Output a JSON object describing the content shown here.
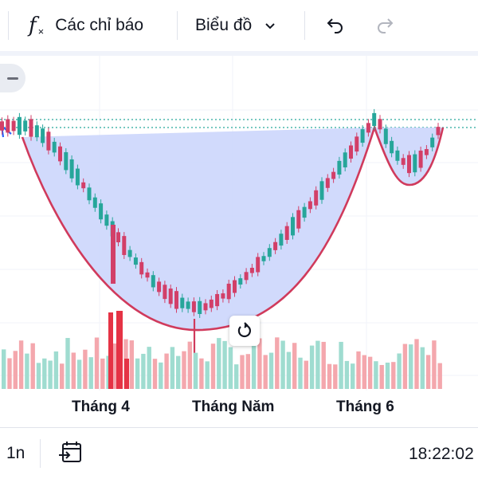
{
  "toolbar": {
    "indicators_label": "Các chỉ báo",
    "chart_type_label": "Biểu đồ",
    "icons": [
      "fx-icon",
      "chevron-down-icon",
      "undo-icon",
      "redo-icon"
    ]
  },
  "chart": {
    "x_labels": [
      "Tháng 4",
      "Tháng Năm",
      "Tháng 6"
    ],
    "colors": {
      "up": "#26a69a",
      "down": "#d23f68",
      "pattern_fill": "#c9d3fb",
      "pattern_stroke": "#d03a5c",
      "vol_up": "#9fdcd0",
      "vol_down": "#f4a7ad",
      "vol_down_strong": "#e53345"
    },
    "pattern": "cup-and-handle"
  },
  "bottombar": {
    "interval": "1n",
    "time": "18:22:02",
    "icons": [
      "goto-date-icon"
    ]
  },
  "chart_data": {
    "type": "candlestick",
    "x": [],
    "series": [],
    "xlabel": "",
    "ylabel": ""
  }
}
